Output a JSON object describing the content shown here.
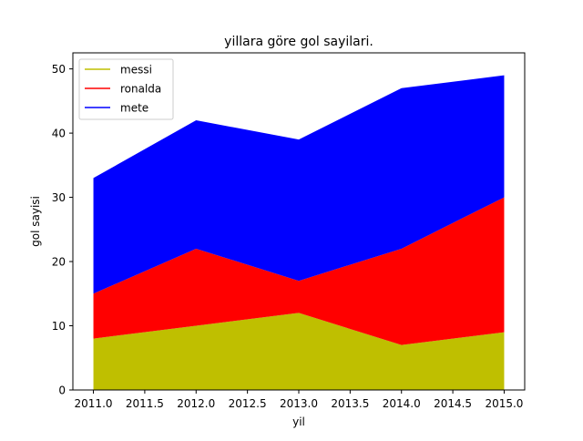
{
  "chart_data": {
    "type": "area",
    "stacked": true,
    "title": "yillara göre gol sayilari.",
    "xlabel": "yil",
    "ylabel": "gol sayisi",
    "x": [
      2011,
      2012,
      2013,
      2014,
      2015
    ],
    "xlim": [
      2010.8,
      2015.2
    ],
    "ylim": [
      0,
      52.5
    ],
    "xticks": [
      2011.0,
      2011.5,
      2012.0,
      2012.5,
      2013.0,
      2013.5,
      2014.0,
      2014.5,
      2015.0
    ],
    "xtick_labels": [
      "2011.0",
      "2011.5",
      "2012.0",
      "2012.5",
      "2013.0",
      "2013.5",
      "2014.0",
      "2014.5",
      "2015.0"
    ],
    "yticks": [
      0,
      10,
      20,
      30,
      40,
      50
    ],
    "ytick_labels": [
      "0",
      "10",
      "20",
      "30",
      "40",
      "50"
    ],
    "grid": false,
    "legend_position": "top-left",
    "series": [
      {
        "name": "messi",
        "color": "#bfbf00",
        "values": [
          8,
          10,
          12,
          7,
          9
        ]
      },
      {
        "name": "ronalda",
        "color": "#ff0000",
        "values": [
          7,
          12,
          5,
          15,
          21
        ]
      },
      {
        "name": "mete",
        "color": "#0000ff",
        "values": [
          18,
          20,
          22,
          25,
          19
        ]
      }
    ]
  }
}
